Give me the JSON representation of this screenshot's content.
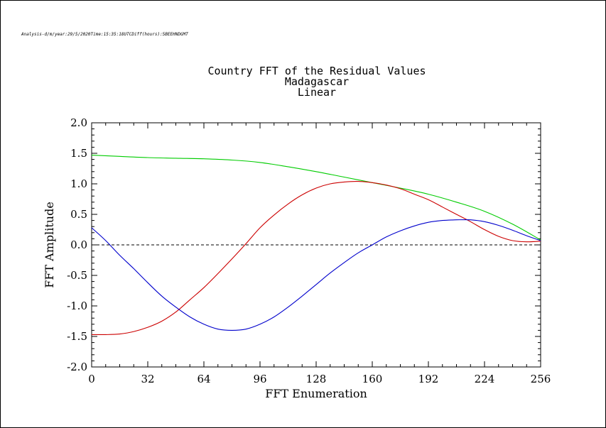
{
  "meta_text": "Analysis-d/m/year:29/5/2020Time:15:35:18UTCDiff(hours):5BEEHNDGMT",
  "chart_data": {
    "type": "line",
    "title": "Country FFT of the Residual Values",
    "subtitle": "Madagascar",
    "subtitle2": "Linear",
    "xlabel": "FFT Enumeration",
    "ylabel": "FFT Amplitude",
    "xlim": [
      0,
      256
    ],
    "ylim": [
      -2.0,
      2.0
    ],
    "xticks": [
      0,
      32,
      64,
      96,
      128,
      160,
      192,
      224,
      256
    ],
    "yticks": [
      -2.0,
      -1.5,
      -1.0,
      -0.5,
      0.0,
      0.5,
      1.0,
      1.5,
      2.0
    ],
    "yticklabels": [
      "-2.0",
      "-1.5",
      "-1.0",
      "-0.5",
      "0.0",
      "0.5",
      "1.0",
      "1.5",
      "2.0"
    ],
    "zero_line": "dashed",
    "series": [
      {
        "color": "#00cc00",
        "x": [
          0,
          16,
          32,
          48,
          64,
          80,
          96,
          112,
          128,
          144,
          160,
          176,
          192,
          208,
          224,
          240,
          256
        ],
        "y": [
          1.47,
          1.45,
          1.43,
          1.42,
          1.41,
          1.39,
          1.35,
          1.28,
          1.2,
          1.11,
          1.02,
          0.93,
          0.83,
          0.7,
          0.55,
          0.34,
          0.08
        ]
      },
      {
        "color": "#cc0000",
        "x": [
          0,
          8,
          16,
          24,
          32,
          40,
          48,
          56,
          64,
          72,
          80,
          88,
          96,
          104,
          112,
          120,
          128,
          136,
          144,
          152,
          160,
          168,
          176,
          184,
          192,
          200,
          208,
          216,
          224,
          232,
          240,
          248,
          256
        ],
        "y": [
          -1.47,
          -1.47,
          -1.46,
          -1.42,
          -1.35,
          -1.25,
          -1.1,
          -0.9,
          -0.7,
          -0.47,
          -0.23,
          0.02,
          0.28,
          0.49,
          0.67,
          0.82,
          0.93,
          1.0,
          1.03,
          1.04,
          1.02,
          0.98,
          0.92,
          0.83,
          0.74,
          0.62,
          0.5,
          0.38,
          0.25,
          0.14,
          0.07,
          0.05,
          0.06
        ]
      },
      {
        "color": "#0000cc",
        "x": [
          0,
          8,
          16,
          24,
          32,
          40,
          48,
          56,
          64,
          72,
          80,
          88,
          96,
          104,
          112,
          120,
          128,
          136,
          144,
          152,
          160,
          168,
          176,
          184,
          192,
          200,
          208,
          216,
          224,
          232,
          240,
          248,
          256
        ],
        "y": [
          0.28,
          0.07,
          -0.17,
          -0.39,
          -0.62,
          -0.84,
          -1.02,
          -1.18,
          -1.3,
          -1.38,
          -1.4,
          -1.38,
          -1.3,
          -1.18,
          -1.02,
          -0.84,
          -0.65,
          -0.46,
          -0.29,
          -0.13,
          0.0,
          0.13,
          0.23,
          0.31,
          0.37,
          0.4,
          0.41,
          0.41,
          0.38,
          0.32,
          0.24,
          0.15,
          0.07
        ]
      }
    ]
  }
}
